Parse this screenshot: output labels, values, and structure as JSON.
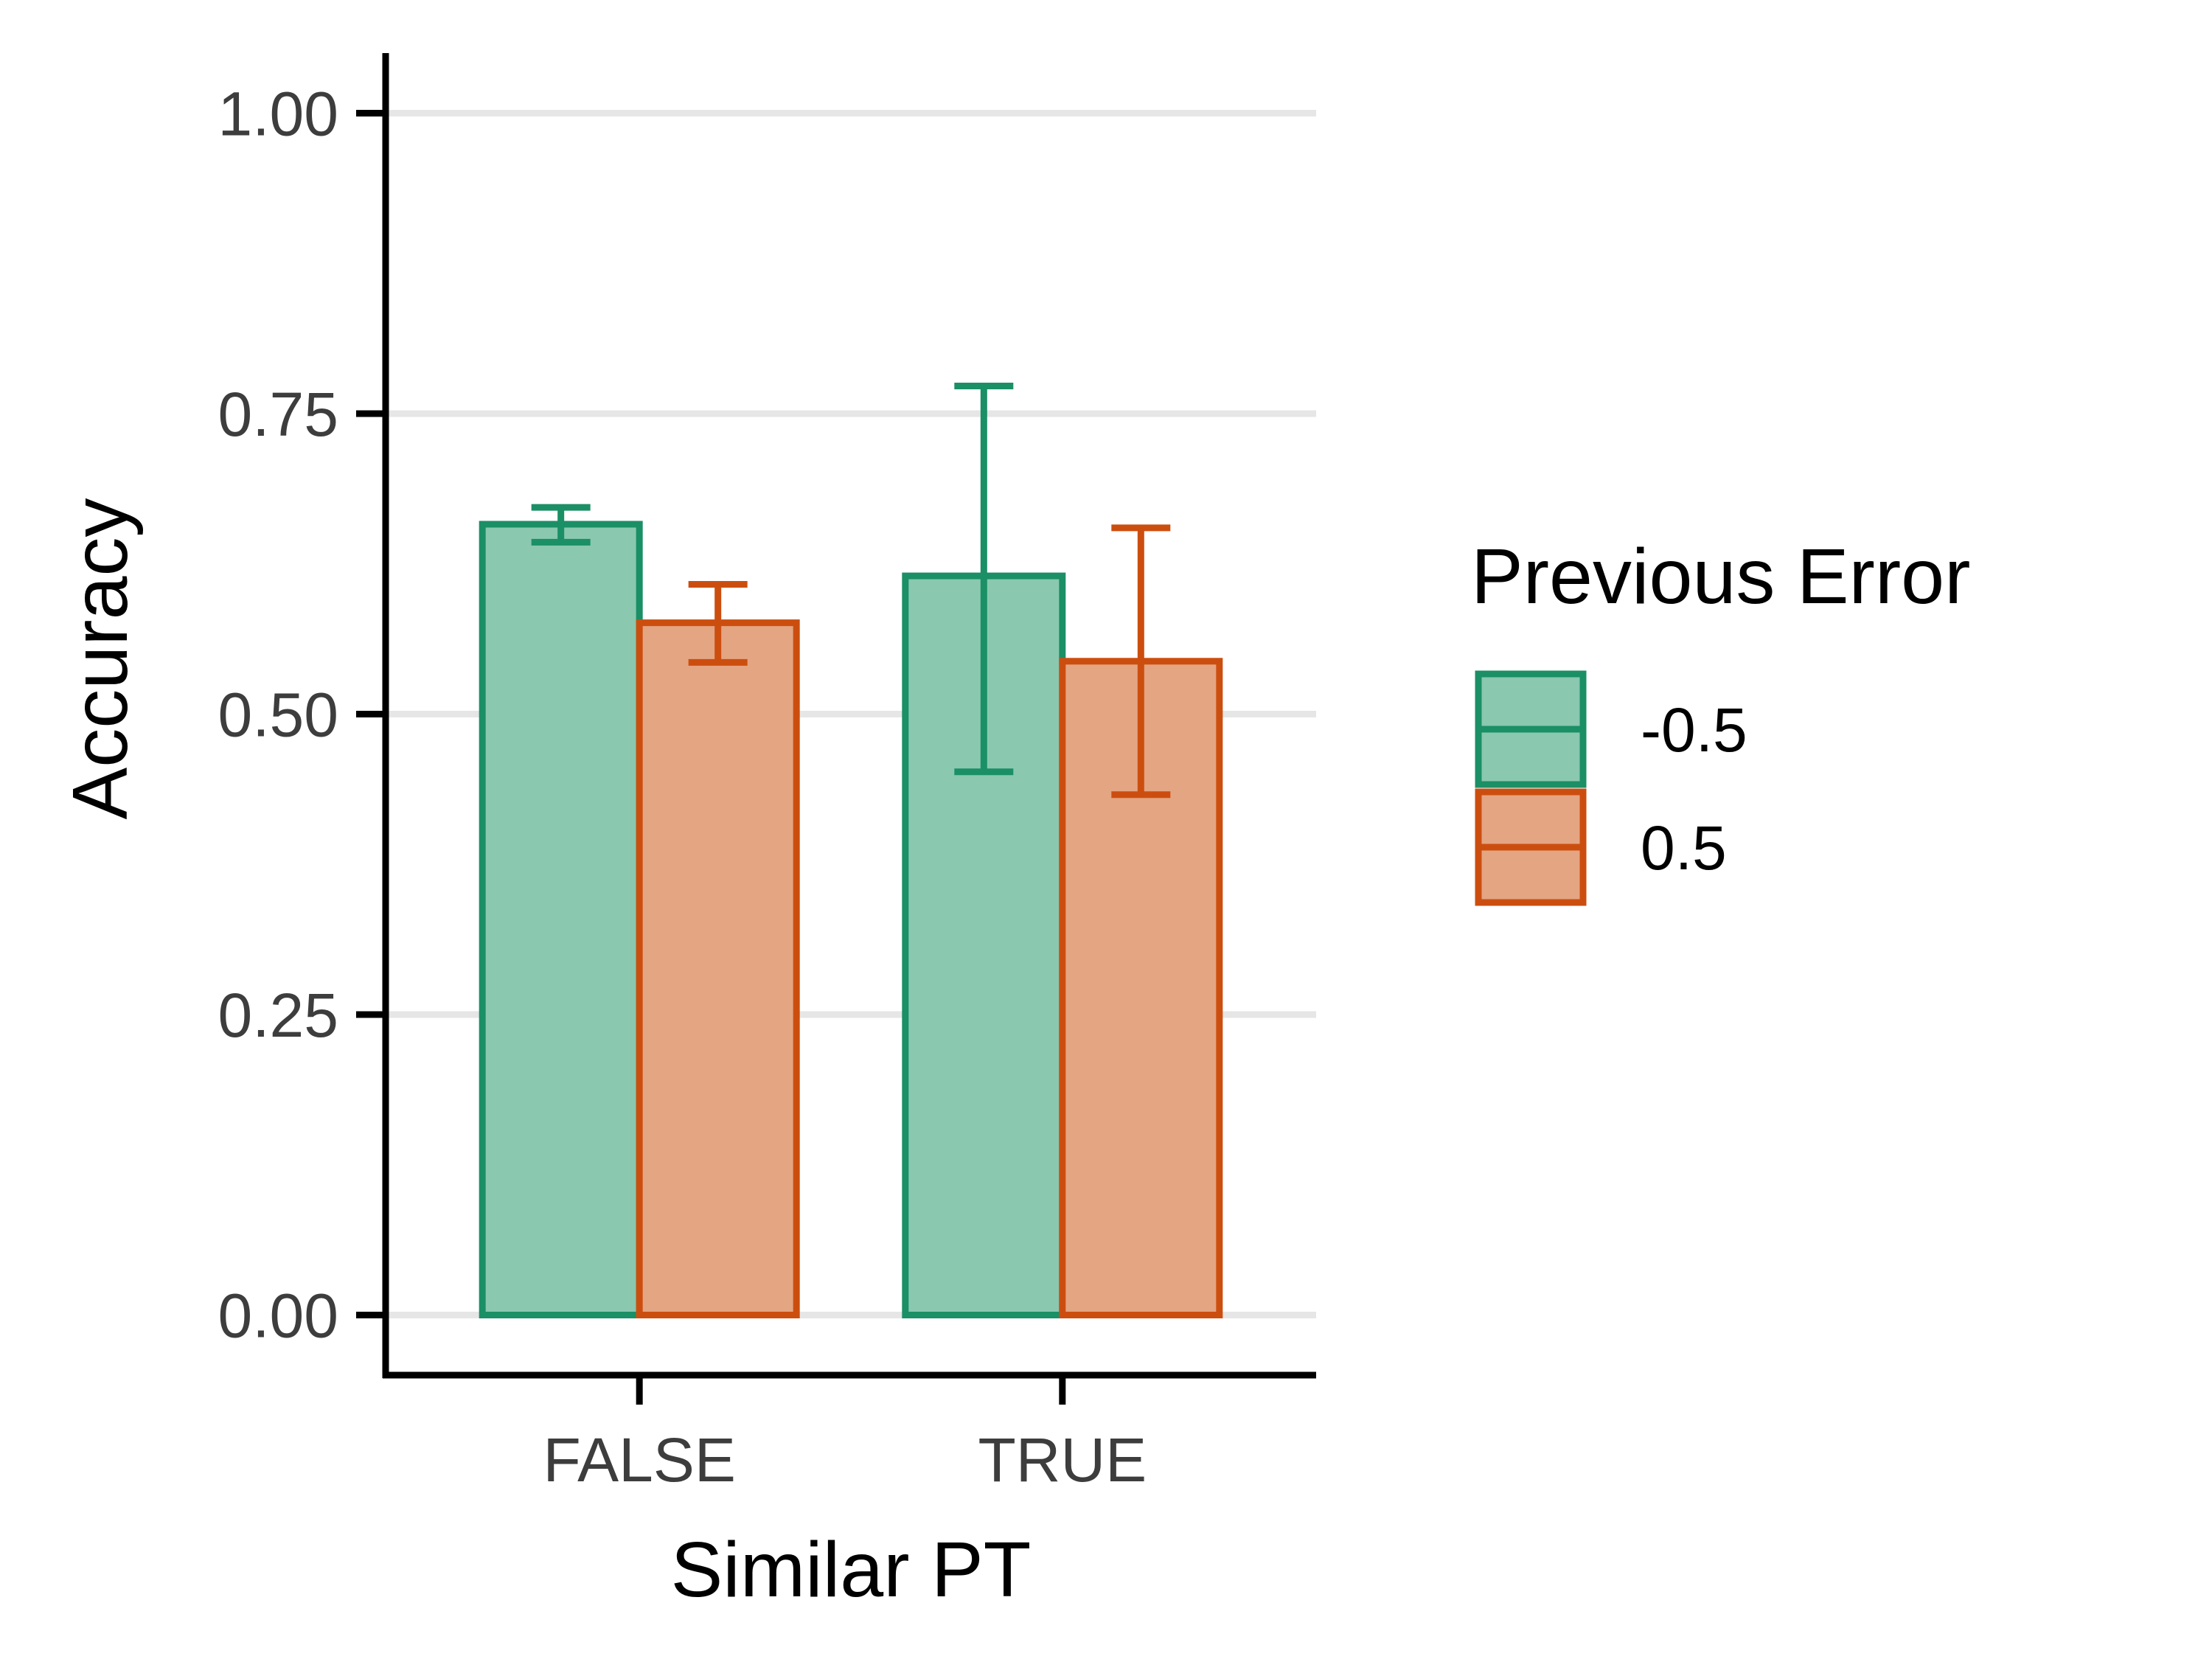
{
  "chart_data": {
    "type": "bar",
    "title": "",
    "xlabel": "Similar PT",
    "ylabel": "Accuracy",
    "categories": [
      "FALSE",
      "TRUE"
    ],
    "ylim": [
      -0.05,
      1.05
    ],
    "yticks": [
      {
        "value": 0.0,
        "label": "0.00"
      },
      {
        "value": 0.25,
        "label": "0.25"
      },
      {
        "value": 0.5,
        "label": "0.50"
      },
      {
        "value": 0.75,
        "label": "0.75"
      },
      {
        "value": 1.0,
        "label": "1.00"
      }
    ],
    "grid": "horizontal",
    "legend": {
      "title": "Previous Error",
      "position": "right"
    },
    "series": [
      {
        "name": "-0.5",
        "color": "#1b8f66",
        "fill": "#8ac8b0",
        "values": [
          0.658,
          0.615
        ],
        "err_low": [
          0.643,
          0.452
        ],
        "err_high": [
          0.672,
          0.773
        ]
      },
      {
        "name": "0.5",
        "color": "#cc4e0f",
        "fill": "#e4a583",
        "values": [
          0.576,
          0.544
        ],
        "err_low": [
          0.543,
          0.433
        ],
        "err_high": [
          0.608,
          0.655
        ]
      }
    ]
  }
}
